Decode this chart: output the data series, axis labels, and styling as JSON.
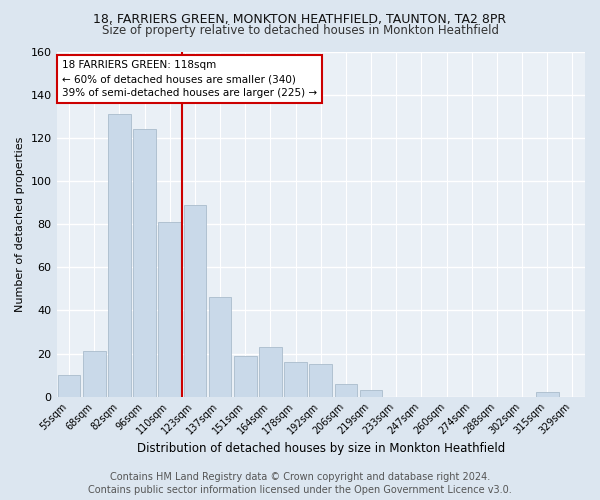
{
  "title1": "18, FARRIERS GREEN, MONKTON HEATHFIELD, TAUNTON, TA2 8PR",
  "title2": "Size of property relative to detached houses in Monkton Heathfield",
  "xlabel": "Distribution of detached houses by size in Monkton Heathfield",
  "ylabel": "Number of detached properties",
  "footer1": "Contains HM Land Registry data © Crown copyright and database right 2024.",
  "footer2": "Contains public sector information licensed under the Open Government Licence v3.0.",
  "categories": [
    "55sqm",
    "68sqm",
    "82sqm",
    "96sqm",
    "110sqm",
    "123sqm",
    "137sqm",
    "151sqm",
    "164sqm",
    "178sqm",
    "192sqm",
    "206sqm",
    "219sqm",
    "233sqm",
    "247sqm",
    "260sqm",
    "274sqm",
    "288sqm",
    "302sqm",
    "315sqm",
    "329sqm"
  ],
  "values": [
    10,
    21,
    131,
    124,
    81,
    89,
    46,
    19,
    23,
    16,
    15,
    6,
    3,
    0,
    0,
    0,
    0,
    0,
    0,
    2,
    0
  ],
  "bar_color": "#c9d9e9",
  "bar_edge_color": "#aabccc",
  "vline_x_index": 4.5,
  "vline_color": "#cc0000",
  "annotation_text": "18 FARRIERS GREEN: 118sqm\n← 60% of detached houses are smaller (340)\n39% of semi-detached houses are larger (225) →",
  "annotation_box_color": "#ffffff",
  "annotation_box_edge": "#cc0000",
  "ylim": [
    0,
    160
  ],
  "yticks": [
    0,
    20,
    40,
    60,
    80,
    100,
    120,
    140,
    160
  ],
  "bg_color": "#dce6f0",
  "plot_bg_color": "#eaf0f6",
  "grid_color": "#ffffff",
  "title1_fontsize": 9,
  "title2_fontsize": 8.5,
  "footer_fontsize": 7,
  "ylabel_fontsize": 8,
  "xlabel_fontsize": 8.5
}
